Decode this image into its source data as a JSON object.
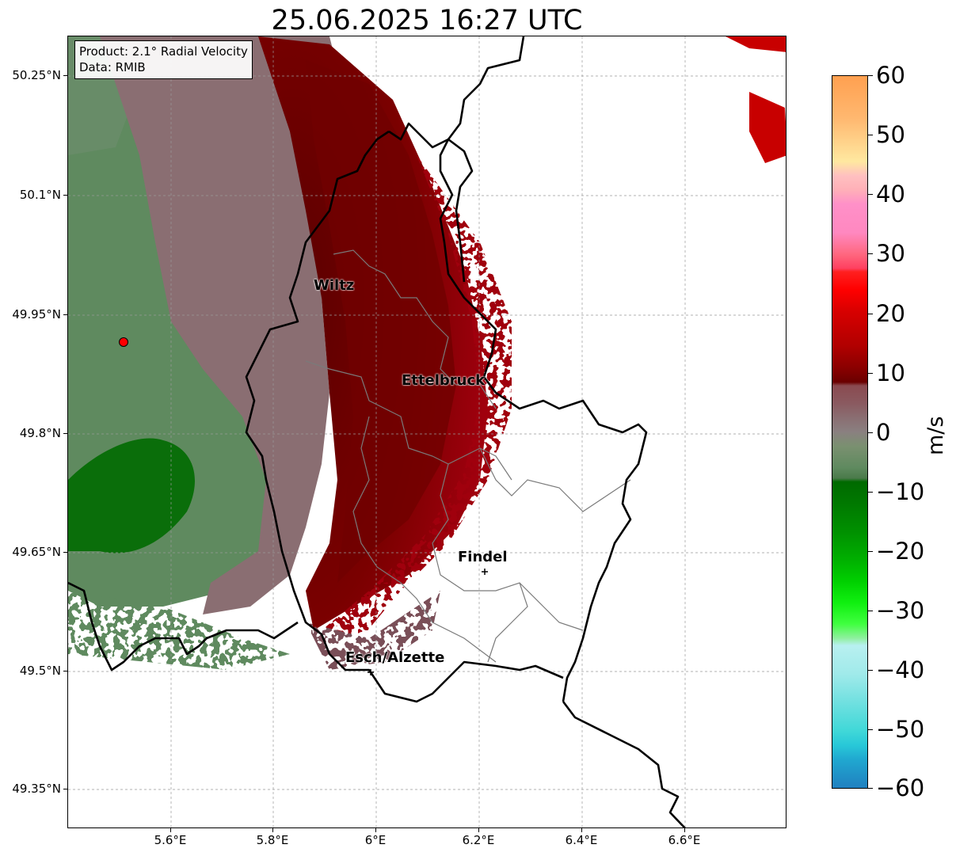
{
  "title": "25.06.2025 16:27 UTC",
  "info": {
    "product": "Product: 2.1° Radial Velocity",
    "data_source": "Data: RMIB"
  },
  "axes": {
    "lat_ticks": [
      "50.25°N",
      "50.1°N",
      "49.95°N",
      "49.8°N",
      "49.65°N",
      "49.5°N",
      "49.35°N"
    ],
    "lon_ticks": [
      "5.6°E",
      "5.8°E",
      "6°E",
      "6.2°E",
      "6.4°E",
      "6.6°E"
    ]
  },
  "cities": [
    {
      "name": "Wiltz"
    },
    {
      "name": "Ettelbruck"
    },
    {
      "name": "Findel"
    },
    {
      "name": "Esch/Alzette"
    }
  ],
  "colorbar": {
    "label": "m/s",
    "ticks": [
      "60",
      "50",
      "40",
      "30",
      "20",
      "10",
      "0",
      "−10",
      "−20",
      "−30",
      "−40",
      "−50",
      "−60"
    ],
    "range": [
      -60,
      60
    ]
  },
  "colors": {
    "strong_receding": "#8b0000",
    "weak_receding": "#8a6e72",
    "weak_approaching": "#5f8a5f",
    "strong_approaching": "#007000",
    "radar_marker": "#ff0000"
  }
}
